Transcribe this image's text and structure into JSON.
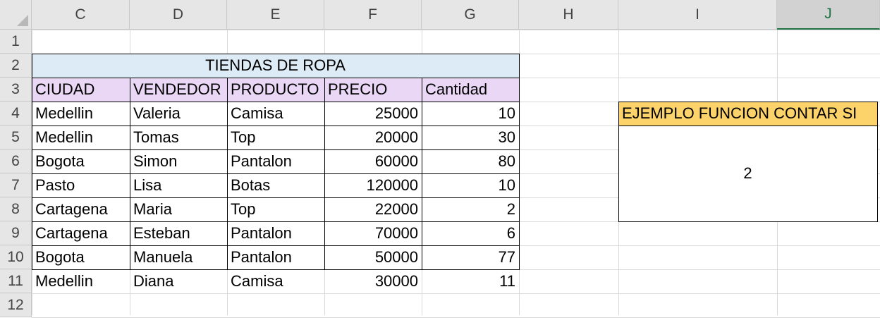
{
  "colors": {
    "title_fill": "#ddebf7",
    "header_fill": "#e9d7f5",
    "box_title_fill": "#fcd26a",
    "header_bg": "#e6e6e6",
    "selected_accent": "#217346"
  },
  "columns": [
    "C",
    "D",
    "E",
    "F",
    "G",
    "H",
    "I",
    "J"
  ],
  "rows": [
    "1",
    "2",
    "3",
    "4",
    "5",
    "6",
    "7",
    "8",
    "9",
    "10",
    "11",
    "12"
  ],
  "table": {
    "title": "TIENDAS DE ROPA",
    "headers": [
      "CIUDAD",
      "VENDEDOR",
      "PRODUCTO",
      "PRECIO",
      "Cantidad"
    ],
    "rows": [
      [
        "Medellin",
        "Valeria",
        "Camisa",
        "25000",
        "10"
      ],
      [
        "Medellin",
        "Tomas",
        "Top",
        "20000",
        "30"
      ],
      [
        "Bogota",
        "Simon",
        "Pantalon",
        "60000",
        "80"
      ],
      [
        "Pasto",
        "Lisa",
        "Botas",
        "120000",
        "10"
      ],
      [
        "Cartagena",
        "Maria",
        "Top",
        "22000",
        "2"
      ],
      [
        "Cartagena",
        "Esteban",
        "Pantalon",
        "70000",
        "6"
      ],
      [
        "Bogota",
        "Manuela",
        "Pantalon",
        "50000",
        "77"
      ],
      [
        "Medellin",
        "Diana",
        "Camisa",
        "30000",
        "11"
      ]
    ]
  },
  "example": {
    "title": "EJEMPLO FUNCION CONTAR SI",
    "result": "2"
  }
}
